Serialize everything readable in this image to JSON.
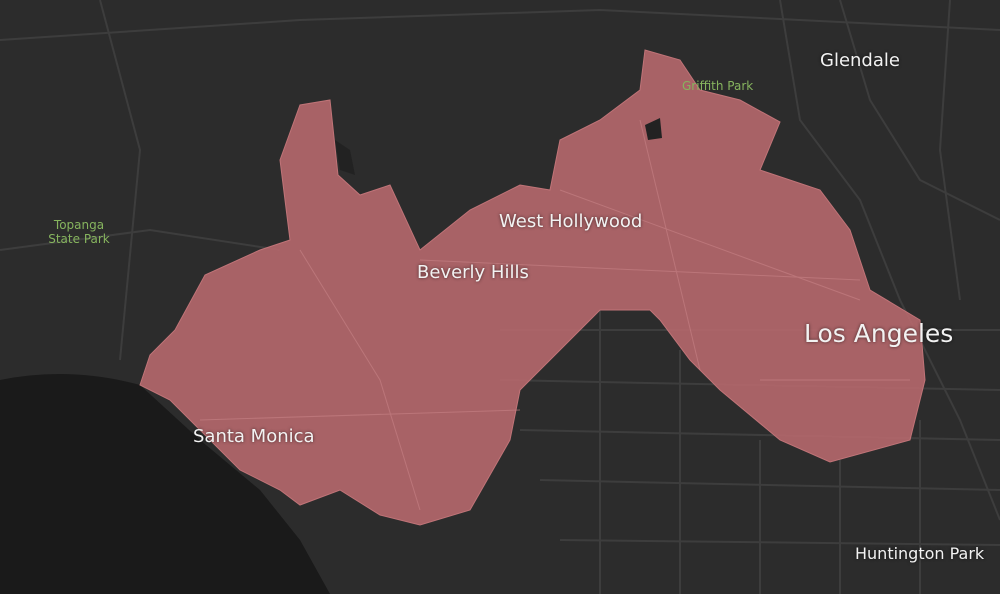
{
  "cities": [
    "Glendale",
    "West Hollywood",
    "Beverly Hills",
    "Los Angeles",
    "Santa Monica",
    "Huntington Park"
  ],
  "parks": [
    "Griffith Park",
    "Topanga State Park"
  ]
}
